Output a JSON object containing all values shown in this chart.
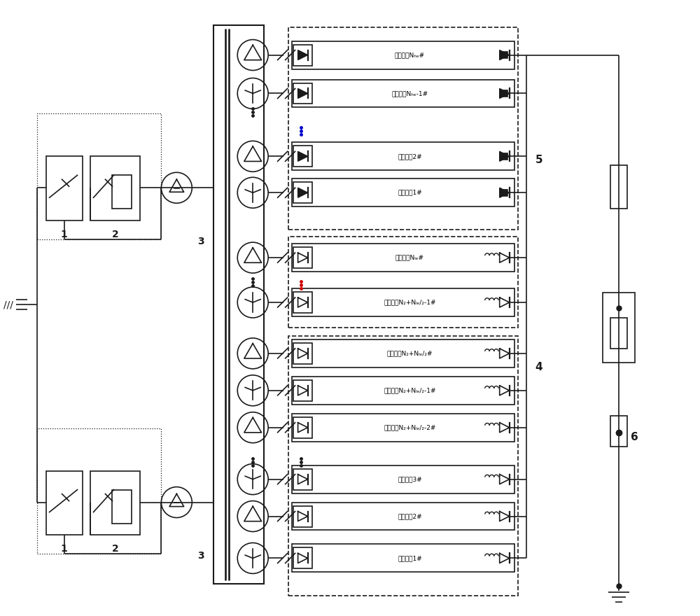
{
  "bg": "#ffffff",
  "lc": "#1a1a1a",
  "blue": "#0000cc",
  "red": "#cc0000",
  "lw": 1.2,
  "hf_labels": [
    "高频模块Nₕₑ#",
    "高频模块Nₕₑ-1#",
    "高频模剗2#",
    "高频模剗1#"
  ],
  "lf_top_labels": [
    "低频模块Nₗₑ#",
    "低频模块N₂+Nₗₑ/₂-1#"
  ],
  "lf_bot_labels": [
    "低频模块N₂+Nₗₑ/₂#",
    "低频模块N₂+Nₗₑ/₂-1#",
    "低频模块N₂+Nₗₑ/₂-2#",
    "低频模剗3#",
    "低频模剗2#",
    "低频模剗1#"
  ],
  "nums": {
    "1": "1",
    "2": "2",
    "3": "3",
    "4": "4",
    "5": "5",
    "6": "6"
  }
}
